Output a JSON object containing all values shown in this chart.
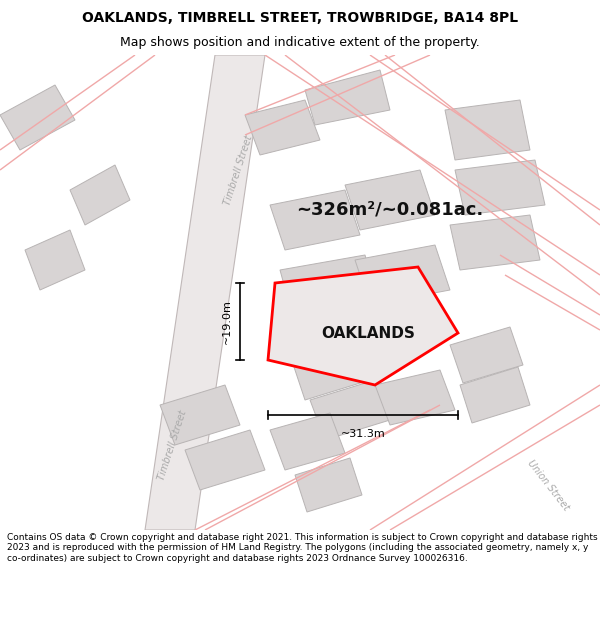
{
  "title": "OAKLANDS, TIMBRELL STREET, TROWBRIDGE, BA14 8PL",
  "subtitle": "Map shows position and indicative extent of the property.",
  "area_text": "~326m²/~0.081ac.",
  "property_label": "OAKLANDS",
  "dim_height": "~19.0m",
  "dim_width": "~31.3m",
  "footer": "Contains OS data © Crown copyright and database right 2021. This information is subject to Crown copyright and database rights 2023 and is reproduced with the permission of HM Land Registry. The polygons (including the associated geometry, namely x, y co-ordinates) are subject to Crown copyright and database rights 2023 Ordnance Survey 100026316.",
  "bg_color": "#ffffff",
  "map_bg": "#f2f0f0",
  "road_fill": "#e8e2e2",
  "road_edge": "#c8c0c0",
  "pink_line": "#f0a8a8",
  "grey_fill": "#d8d4d4",
  "grey_edge": "#b8b4b4",
  "property_fill": "#ede8e8",
  "property_outline": "#ff0000",
  "title_color": "#000000",
  "dim_color": "#000000",
  "street_label_color": "#aaaaaa",
  "footer_color": "#000000",
  "title_fontsize": 10,
  "subtitle_fontsize": 9,
  "area_fontsize": 13,
  "label_fontsize": 11,
  "dim_fontsize": 8,
  "street_fontsize": 7,
  "footer_fontsize": 6.5
}
